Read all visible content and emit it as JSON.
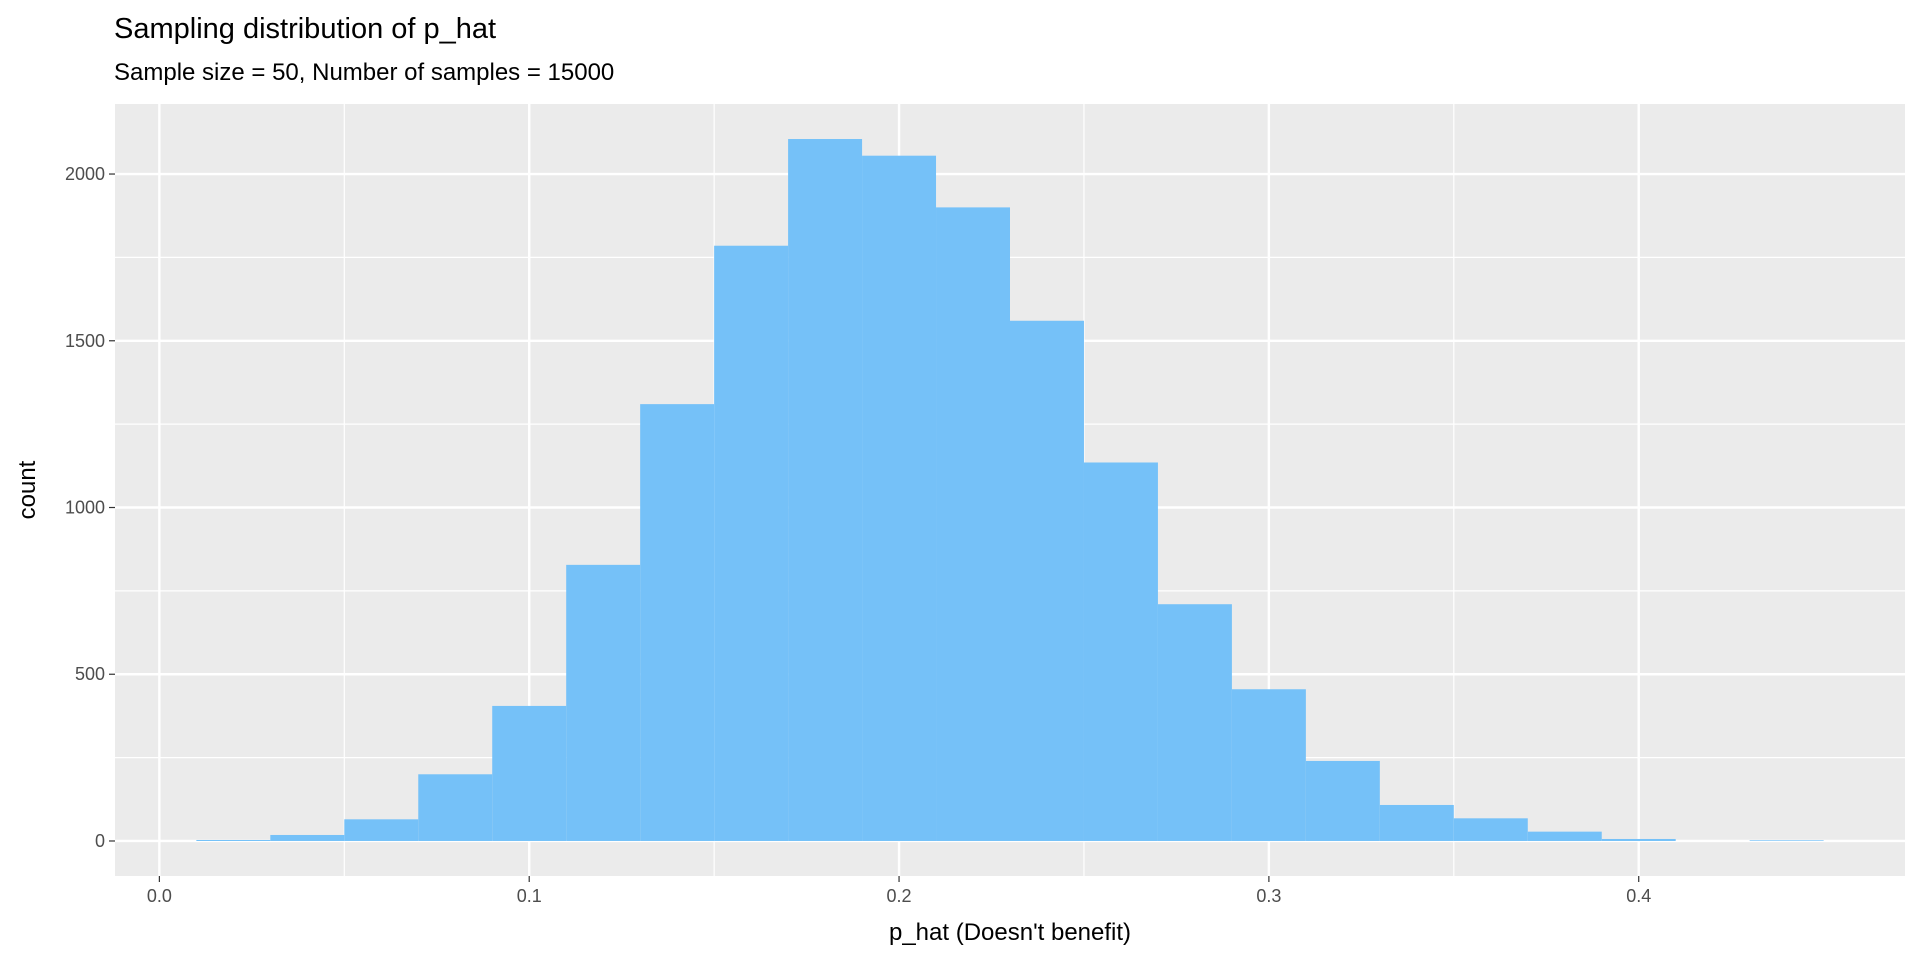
{
  "chart_data": {
    "type": "histogram",
    "title": "Sampling distribution of p_hat",
    "subtitle": "Sample size = 50, Number of samples = 15000",
    "x_label": "p_hat (Doesn't benefit)",
    "y_label": "count",
    "bins": [
      0.01,
      0.03,
      0.05,
      0.07,
      0.09,
      0.11,
      0.13,
      0.15,
      0.17,
      0.19,
      0.21,
      0.23,
      0.25,
      0.27,
      0.29,
      0.31,
      0.33,
      0.35,
      0.37,
      0.39,
      0.41,
      0.43,
      0.45
    ],
    "values": [
      3,
      18,
      65,
      200,
      405,
      828,
      1310,
      1785,
      2105,
      2055,
      1900,
      1560,
      1135,
      710,
      455,
      240,
      108,
      68,
      28,
      6,
      0,
      2
    ],
    "color": "#75c1f8",
    "xlim": [
      -0.012,
      0.472
    ],
    "ylim": [
      -105,
      2210
    ],
    "xticks": [
      {
        "value": 0,
        "label": "0.0"
      },
      0.1,
      0.2,
      0.3,
      0.4
    ],
    "yticks": [
      0,
      500,
      1000,
      1500,
      2000
    ],
    "grid": true
  }
}
